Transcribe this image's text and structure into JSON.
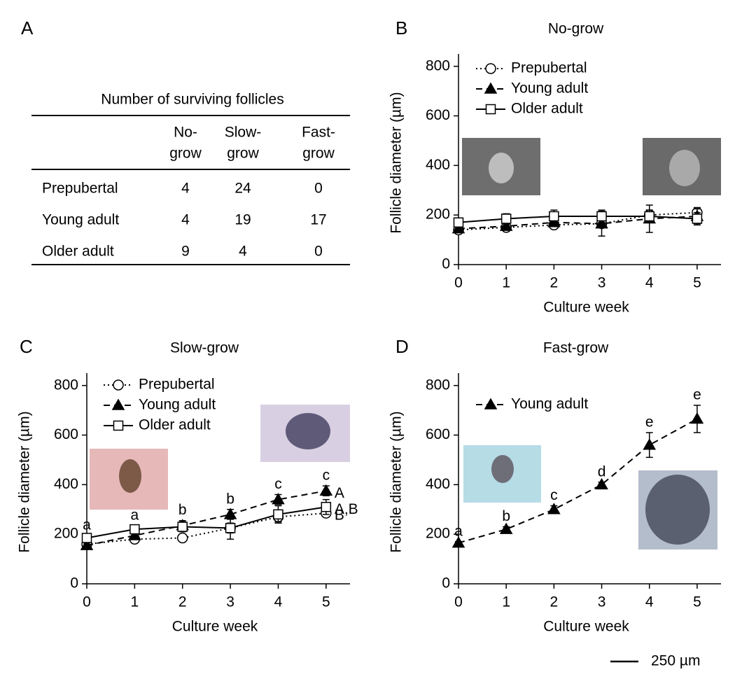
{
  "panel_labels": [
    "A",
    "B",
    "C",
    "D"
  ],
  "table": {
    "title": "Number of surviving follicles",
    "columns": [
      [
        "No-",
        "grow"
      ],
      [
        "Slow-",
        "grow"
      ],
      [
        "Fast-",
        "grow"
      ]
    ],
    "rows": [
      [
        "Prepubertal",
        4,
        24,
        0
      ],
      [
        "Young adult",
        4,
        19,
        17
      ],
      [
        "Older adult",
        9,
        4,
        0
      ]
    ]
  },
  "scale_bar": "250 µm",
  "chart_data": [
    {
      "type": "line",
      "title": "No-grow",
      "x_label": "Culture week",
      "y_label": "Follicle diameter (µm)",
      "x": [
        0,
        1,
        2,
        3,
        4,
        5
      ],
      "xlim": [
        0,
        5.5
      ],
      "xticks": [
        0,
        1,
        2,
        3,
        4,
        5
      ],
      "ylim": [
        0,
        850
      ],
      "yticks": [
        0,
        200,
        400,
        600,
        800
      ],
      "series": [
        {
          "name": "Prepubertal",
          "color": "#000000",
          "marker": "circle",
          "marker_fill": "#ffffff",
          "line_style": "dotted",
          "values": [
            140,
            150,
            160,
            165,
            200,
            210
          ],
          "errors": [
            10,
            10,
            10,
            10,
            20,
            20
          ]
        },
        {
          "name": "Young adult",
          "color": "#000000",
          "marker": "triangle",
          "marker_fill": "#000000",
          "line_style": "dashed",
          "values": [
            145,
            155,
            170,
            165,
            185,
            195
          ],
          "errors": [
            10,
            10,
            10,
            50,
            55,
            30
          ]
        },
        {
          "name": "Older adult",
          "color": "#000000",
          "marker": "square",
          "marker_fill": "#ffffff",
          "line_style": "solid",
          "values": [
            170,
            185,
            195,
            195,
            195,
            185
          ],
          "errors": [
            15,
            20,
            25,
            25,
            25,
            25
          ]
        }
      ]
    },
    {
      "type": "line",
      "title": "Slow-grow",
      "x_label": "Culture week",
      "y_label": "Follicle diameter (µm)",
      "x": [
        0,
        1,
        2,
        3,
        4,
        5
      ],
      "xlim": [
        0,
        5.5
      ],
      "xticks": [
        0,
        1,
        2,
        3,
        4,
        5
      ],
      "ylim": [
        0,
        850
      ],
      "yticks": [
        0,
        200,
        400,
        600,
        800
      ],
      "point_labels": [
        "a",
        "a",
        "b",
        "b",
        "c",
        "c"
      ],
      "series": [
        {
          "name": "Prepubertal",
          "color": "#000000",
          "marker": "circle",
          "marker_fill": "#ffffff",
          "line_style": "dotted",
          "values": [
            160,
            180,
            185,
            225,
            270,
            285
          ],
          "errors": [
            10,
            10,
            10,
            20,
            20,
            15
          ],
          "end_label": "B"
        },
        {
          "name": "Young adult",
          "color": "#000000",
          "marker": "triangle",
          "marker_fill": "#000000",
          "line_style": "dashed",
          "values": [
            155,
            195,
            235,
            280,
            340,
            375
          ],
          "errors": [
            10,
            15,
            20,
            20,
            20,
            20
          ],
          "end_label": "A"
        },
        {
          "name": "Older adult",
          "color": "#000000",
          "marker": "square",
          "marker_fill": "#ffffff",
          "line_style": "solid",
          "values": [
            185,
            220,
            230,
            225,
            280,
            310
          ],
          "errors": [
            10,
            15,
            20,
            45,
            35,
            30
          ],
          "end_label": "A,B"
        }
      ]
    },
    {
      "type": "line",
      "title": "Fast-grow",
      "x_label": "Culture week",
      "y_label": "Follicle diameter (µm)",
      "x": [
        0,
        1,
        2,
        3,
        4,
        5
      ],
      "xlim": [
        0,
        5.5
      ],
      "xticks": [
        0,
        1,
        2,
        3,
        4,
        5
      ],
      "ylim": [
        0,
        850
      ],
      "yticks": [
        0,
        200,
        400,
        600,
        800
      ],
      "point_labels": [
        "a",
        "b",
        "c",
        "d",
        "e",
        "e"
      ],
      "series": [
        {
          "name": "Young adult",
          "color": "#000000",
          "marker": "triangle",
          "marker_fill": "#000000",
          "line_style": "dashed",
          "values": [
            165,
            220,
            300,
            400,
            560,
            665
          ],
          "errors": [
            5,
            10,
            15,
            10,
            50,
            55
          ]
        }
      ]
    }
  ]
}
